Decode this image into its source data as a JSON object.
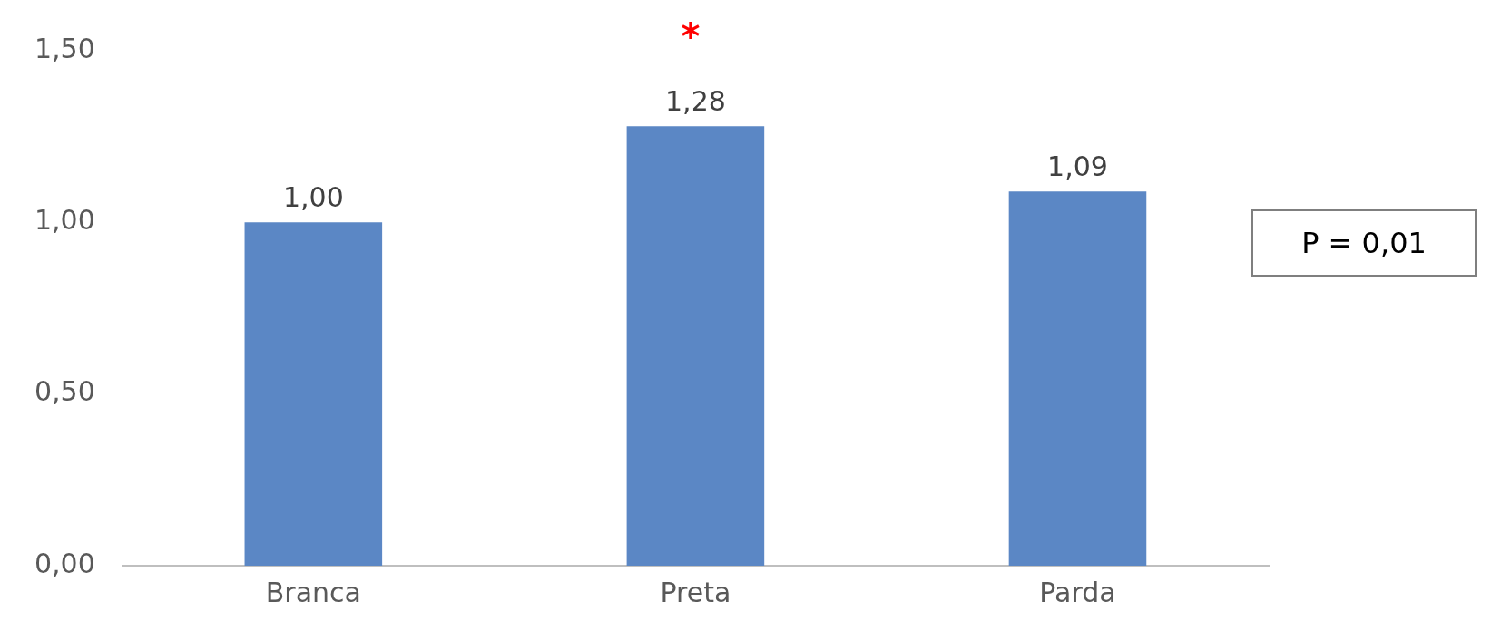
{
  "chart_data": {
    "type": "bar",
    "categories": [
      "Branca",
      "Preta",
      "Parda"
    ],
    "values": [
      1.0,
      1.28,
      1.09
    ],
    "value_labels": [
      "1,00",
      "1,28",
      "1,09"
    ],
    "color": "#5b87c5",
    "ylim": [
      0,
      1.5
    ],
    "yticks": [
      {
        "value": 0,
        "label": "0,00"
      },
      {
        "value": 0.5,
        "label": "0,50"
      },
      {
        "value": 1,
        "label": "1,00"
      },
      {
        "value": 1.5,
        "label": "1,50"
      }
    ],
    "grid": false,
    "legend": false,
    "annotations": [
      "*",
      "P = 0,01"
    ]
  }
}
